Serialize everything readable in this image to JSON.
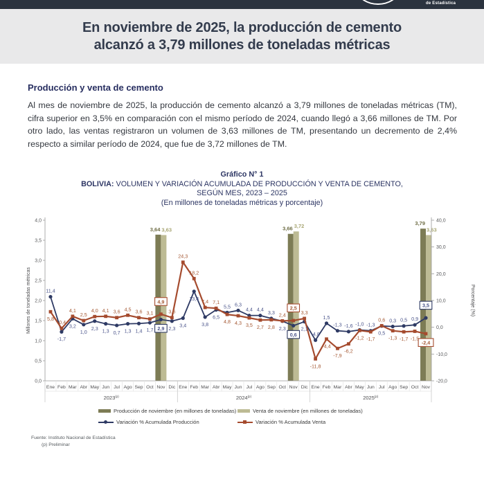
{
  "header": {
    "brand_text": "de Estadística"
  },
  "banner": {
    "line1": "En noviembre de 2025, la producción de cemento",
    "line2": "alcanzó a 3,79 millones de toneladas métricas"
  },
  "section": {
    "heading": "Producción y venta de cemento",
    "paragraph": "Al mes de noviembre de 2025, la producción de cemento alcanzó a 3,79 millones de toneladas métricas (TM), cifra superior en 3,5% en comparación con el mismo período de 2024, cuando llegó a 3,66 millones de TM. Por otro lado, las ventas registraron un volumen de 3,63 millones de TM, presentando un decremento de 2,4% respecto a similar período de 2024, que fue de 3,72 millones de TM."
  },
  "chart_header": {
    "line1": "Gráfico N° 1",
    "line2_bold": "BOLIVIA:",
    "line2_rest": " VOLUMEN Y VARIACIÓN ACUMULADA DE PRODUCCIÓN Y VENTA DE CEMENTO,",
    "line3": "SEGÚN MES, 2023 – 2025",
    "line4": "(En millones de toneladas métricas y porcentaje)"
  },
  "chart_data": {
    "type": "combo bar+line",
    "month_names": [
      "Ene",
      "Feb",
      "Mar",
      "Abr",
      "May",
      "Jun",
      "Jul",
      "Ago",
      "Sep",
      "Oct",
      "Nov",
      "Dic"
    ],
    "years": [
      {
        "label": "2023",
        "note": "(p)",
        "n_months": 12
      },
      {
        "label": "2024",
        "note": "(p)",
        "n_months": 12
      },
      {
        "label": "2025",
        "note": "(p)",
        "n_months": 11
      }
    ],
    "left_axis": {
      "label": "Millones de toneladas métricas",
      "min": 0,
      "max": 4,
      "step": 0.5
    },
    "right_axis": {
      "label": "Porcentaje (%)",
      "min": -20,
      "max": 40,
      "step": 10
    },
    "grid": "off",
    "bars": {
      "production_color": "#7d7c55",
      "sales_color": "#bdbb94",
      "production_label_color": "#6f6e46",
      "sales_label_color": "#a9a775",
      "items": [
        {
          "month_index": 10,
          "production": 3.64,
          "sales": 3.63
        },
        {
          "month_index": 22,
          "production": 3.66,
          "sales": 3.72
        },
        {
          "month_index": 34,
          "production": 3.79,
          "sales": 3.63
        }
      ]
    },
    "boxed_label_indices": [
      10,
      22,
      34
    ],
    "series": [
      {
        "name": "Variación % Acumulada Producción",
        "color": "#2e3a64",
        "label_color": "#4b558b",
        "marker": "circle",
        "values": [
          11.4,
          -1.7,
          3.2,
          1.0,
          2.3,
          1.3,
          0.7,
          1.3,
          1.4,
          1.7,
          2.9,
          2.3,
          3.4,
          13.4,
          3.8,
          6.5,
          5.5,
          6.3,
          4.4,
          4.4,
          3.3,
          2.3,
          0.6,
          2.1,
          -4.8,
          1.5,
          -1.3,
          -1.6,
          -1.0,
          -1.3,
          0.5,
          0.3,
          0.5,
          0.9,
          3.5
        ]
      },
      {
        "name": "Variación % Acumulada Venta",
        "color": "#a54b2e",
        "label_color": "#a55a35",
        "marker": "square",
        "values": [
          5.8,
          -0.4,
          4.1,
          2.5,
          4.0,
          4.1,
          3.6,
          4.5,
          3.6,
          3.1,
          4.9,
          3.6,
          24.3,
          18.2,
          7.4,
          7.1,
          4.8,
          4.3,
          3.5,
          2.7,
          2.8,
          2.4,
          2.5,
          3.3,
          -11.8,
          -4.4,
          -7.9,
          -6.2,
          -1.2,
          -1.7,
          0.6,
          -1.3,
          -1.7,
          -1.5,
          -2.4
        ]
      }
    ]
  },
  "legend": {
    "items": [
      {
        "type": "bar",
        "color": "#7d7c55",
        "label": "Producción de noviembre (en millones de toneladas)"
      },
      {
        "type": "bar",
        "color": "#bdbb94",
        "label": "Venta de noviembre (en millones de toneladas)"
      },
      {
        "type": "line-circle",
        "color": "#2e3a64",
        "label": "Variación % Acumulada Producción"
      },
      {
        "type": "line-square",
        "color": "#a54b2e",
        "label": "Variación % Acumulada Venta"
      }
    ]
  },
  "footer": {
    "source": "Fuente: Instituto Nacional de Estadística",
    "note": "(p) Preliminar"
  }
}
